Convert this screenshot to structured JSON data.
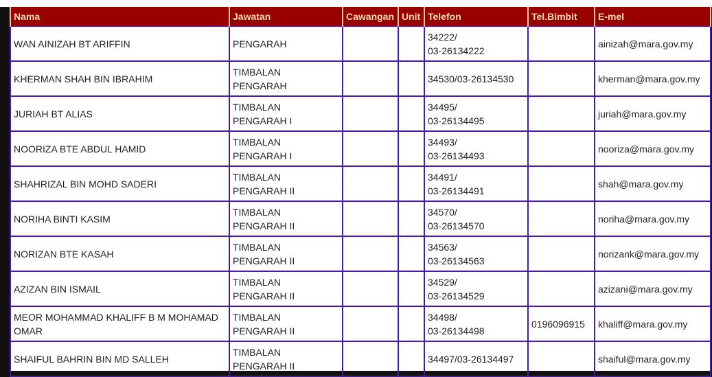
{
  "headers": [
    "Nama",
    "Jawatan",
    "Cawangan",
    "Unit",
    "Telefon",
    "Tel.Bimbit",
    "E-mel"
  ],
  "rows": [
    [
      "WAN AINIZAH BT ARIFFIN",
      "PENGARAH",
      "",
      "",
      "34222/\n03-26134222",
      "",
      "ainizah@mara.gov.my"
    ],
    [
      "KHERMAN SHAH BIN IBRAHIM",
      "TIMBALAN\nPENGARAH",
      "",
      "",
      "34530/03-26134530",
      "",
      "kherman@mara.gov.my"
    ],
    [
      "JURIAH BT ALIAS",
      "TIMBALAN\nPENGARAH I",
      "",
      "",
      "34495/\n03-26134495",
      "",
      "juriah@mara.gov.my"
    ],
    [
      "NOORIZA BTE ABDUL HAMID",
      "TIMBALAN\nPENGARAH I",
      "",
      "",
      "34493/\n03-26134493",
      "",
      "nooriza@mara.gov.my"
    ],
    [
      "SHAHRIZAL BIN MOHD SADERI",
      "TIMBALAN\nPENGARAH II",
      "",
      "",
      "34491/\n03-26134491",
      "",
      "shah@mara.gov.my"
    ],
    [
      "NORIHA BINTI KASIM",
      "TIMBALAN\nPENGARAH II",
      "",
      "",
      "34570/\n03-26134570",
      "",
      "noriha@mara.gov.my"
    ],
    [
      "NORIZAN BTE KASAH",
      "TIMBALAN\nPENGARAH II",
      "",
      "",
      "34563/\n03-26134563",
      "",
      "norizank@mara.gov.my"
    ],
    [
      "AZIZAN BIN ISMAIL",
      "TIMBALAN\nPENGARAH II",
      "",
      "",
      "34529/\n03-26134529",
      "",
      "azizani@mara.gov.my"
    ],
    [
      "MEOR MOHAMMAD KHALIFF B M MOHAMAD\nOMAR",
      "TIMBALAN\nPENGARAH II",
      "",
      "",
      "34498/\n03-26134498",
      "0196096915",
      "khaliff@mara.gov.my"
    ],
    [
      "SHAIFUL BAHRIN BIN MD SALLEH",
      "TIMBALAN\nPENGARAH II",
      "",
      "",
      "34497/03-26134497",
      "",
      "shaiful@mara.gov.my"
    ]
  ]
}
